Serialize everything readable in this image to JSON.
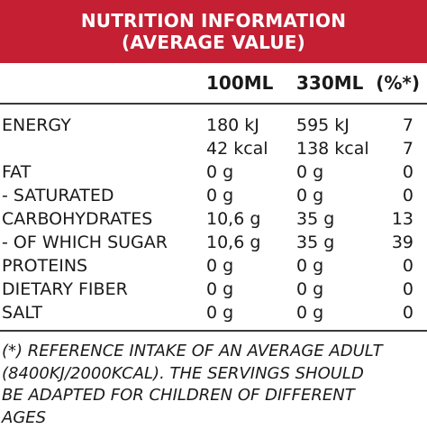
{
  "header": {
    "title_line1": "NUTRITION INFORMATION",
    "title_line2": "(AVERAGE VALUE)",
    "background_color": "#c41f33"
  },
  "columns": {
    "per_100ml": "100ML",
    "per_330ml": "330ML",
    "percent": "(%*)"
  },
  "rows": [
    {
      "label": "ENERGY",
      "per_100ml": "180 kJ",
      "per_330ml": "595 kJ",
      "percent": "7"
    },
    {
      "label": "",
      "per_100ml": "42 kcal",
      "per_330ml": "138 kcal",
      "percent": "7"
    },
    {
      "label": "FAT",
      "per_100ml": "0 g",
      "per_330ml": "0 g",
      "percent": "0"
    },
    {
      "label": "- SATURATED",
      "per_100ml": "0 g",
      "per_330ml": "0 g",
      "percent": "0"
    },
    {
      "label": "CARBOHYDRATES",
      "per_100ml": "10,6 g",
      "per_330ml": "35 g",
      "percent": "13"
    },
    {
      "label": "- OF WHICH SUGAR",
      "per_100ml": "10,6 g",
      "per_330ml": "35 g",
      "percent": "39"
    },
    {
      "label": "PROTEINS",
      "per_100ml": "0 g",
      "per_330ml": "0 g",
      "percent": "0"
    },
    {
      "label": "DIETARY FIBER",
      "per_100ml": "0 g",
      "per_330ml": "0 g",
      "percent": "0"
    },
    {
      "label": "SALT",
      "per_100ml": "0 g",
      "per_330ml": "0 g",
      "percent": "0"
    }
  ],
  "footnote": {
    "line1": "(*) REFERENCE INTAKE OF AN AVERAGE ADULT",
    "line2": "(8400KJ/2000KCAL). THE SERVINGS SHOULD",
    "line3": "BE ADAPTED FOR CHILDREN OF DIFFERENT",
    "line4": "AGES"
  }
}
